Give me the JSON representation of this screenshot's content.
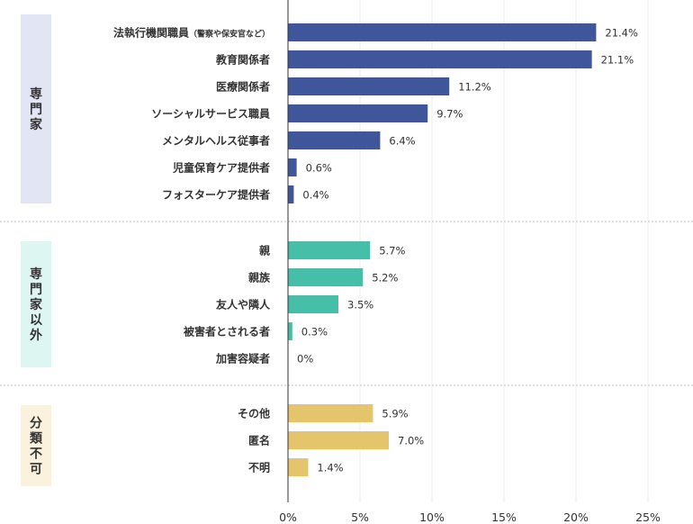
{
  "chart_data": {
    "type": "bar",
    "orientation": "horizontal",
    "xlim": [
      0,
      25
    ],
    "xticks": [
      "0%",
      "5%",
      "10%",
      "15%",
      "20%",
      "25%"
    ],
    "grid": true,
    "groups": [
      {
        "label": "専門家",
        "color": "#3F569A",
        "bg": "#E1E5F4",
        "items": [
          {
            "label": "法執行機関職員",
            "sub": "（警察や保安官など）",
            "value": 21.4,
            "display": "21.4%"
          },
          {
            "label": "教育関係者",
            "value": 21.1,
            "display": "21.1%"
          },
          {
            "label": "医療関係者",
            "value": 11.2,
            "display": "11.2%"
          },
          {
            "label": "ソーシャルサービス職員",
            "value": 9.7,
            "display": "9.7%"
          },
          {
            "label": "メンタルヘルス従事者",
            "value": 6.4,
            "display": "6.4%"
          },
          {
            "label": "児童保育ケア提供者",
            "value": 0.6,
            "display": "0.6%"
          },
          {
            "label": "フォスターケア提供者",
            "value": 0.4,
            "display": "0.4%"
          }
        ]
      },
      {
        "label": "専門家以外",
        "color": "#47BFA8",
        "bg": "#DDF6F1",
        "items": [
          {
            "label": "親",
            "value": 5.7,
            "display": "5.7%"
          },
          {
            "label": "親族",
            "value": 5.2,
            "display": "5.2%"
          },
          {
            "label": "友人や隣人",
            "value": 3.5,
            "display": "3.5%"
          },
          {
            "label": "被害者とされる者",
            "value": 0.3,
            "display": "0.3%"
          },
          {
            "label": "加害容疑者",
            "value": 0,
            "display": "0%"
          }
        ]
      },
      {
        "label": "分類不可",
        "color": "#E4C56C",
        "bg": "#FAF2DC",
        "items": [
          {
            "label": "その他",
            "value": 5.9,
            "display": "5.9%"
          },
          {
            "label": "匿名",
            "value": 7.0,
            "display": "7.0%"
          },
          {
            "label": "不明",
            "value": 1.4,
            "display": "1.4%"
          }
        ]
      }
    ]
  }
}
